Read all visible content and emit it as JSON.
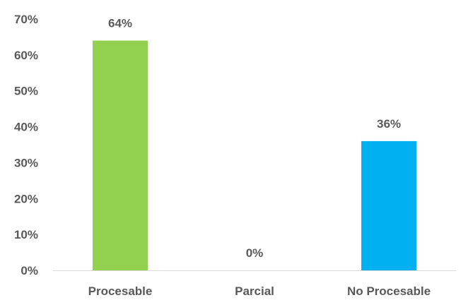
{
  "chart_data": {
    "type": "bar",
    "title": "",
    "xlabel": "",
    "ylabel": "",
    "categories": [
      "Procesable",
      "Parcial",
      "No Procesable"
    ],
    "values": [
      64,
      0,
      36
    ],
    "data_labels": [
      "64%",
      "0%",
      "36%"
    ],
    "colors": [
      "#92D050",
      "#92D050",
      "#00B0F0"
    ],
    "ylim": [
      0,
      70
    ],
    "yticks": [
      {
        "value": 0,
        "label": "0%"
      },
      {
        "value": 10,
        "label": "10%"
      },
      {
        "value": 20,
        "label": "20%"
      },
      {
        "value": 30,
        "label": "30%"
      },
      {
        "value": 40,
        "label": "40%"
      },
      {
        "value": 50,
        "label": "50%"
      },
      {
        "value": 60,
        "label": "60%"
      },
      {
        "value": 70,
        "label": "70%"
      }
    ],
    "grid": false,
    "legend": "none"
  }
}
